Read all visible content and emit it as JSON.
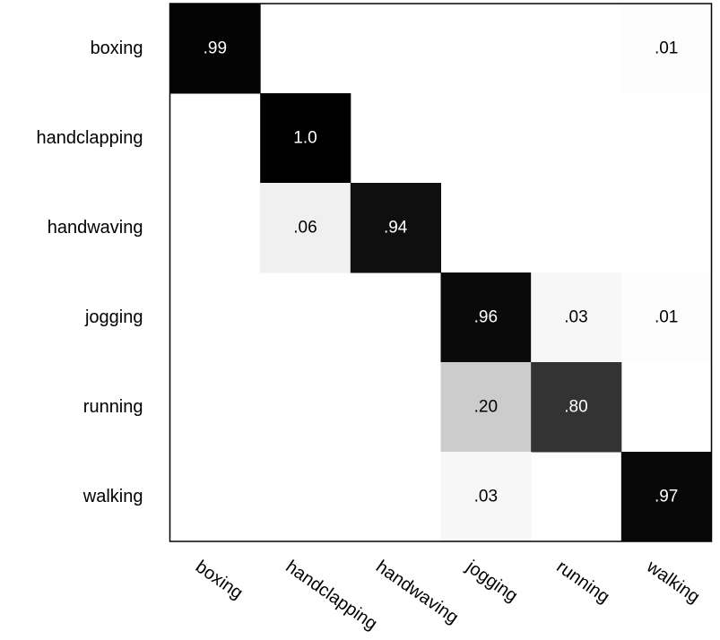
{
  "chart_data": {
    "type": "heatmap",
    "title": "",
    "xlabel": "",
    "ylabel": "",
    "rows": [
      "boxing",
      "handclapping",
      "handwaving",
      "jogging",
      "running",
      "walking"
    ],
    "columns": [
      "boxing",
      "handclapping",
      "handwaving",
      "jogging",
      "running",
      "walking"
    ],
    "values": [
      [
        0.99,
        0,
        0,
        0,
        0,
        0.01
      ],
      [
        0,
        1.0,
        0,
        0,
        0,
        0
      ],
      [
        0,
        0.06,
        0.94,
        0,
        0,
        0
      ],
      [
        0,
        0,
        0,
        0.96,
        0.03,
        0.01
      ],
      [
        0,
        0,
        0,
        0.2,
        0.8,
        0
      ],
      [
        0,
        0,
        0,
        0.03,
        0,
        0.97
      ]
    ],
    "cell_labels": [
      [
        ".99",
        "",
        "",
        "",
        "",
        ".01"
      ],
      [
        "",
        "1.0",
        "",
        "",
        "",
        ""
      ],
      [
        "",
        ".06",
        ".94",
        "",
        "",
        ""
      ],
      [
        "",
        "",
        "",
        ".96",
        ".03",
        ".01"
      ],
      [
        "",
        "",
        "",
        ".20",
        ".80",
        ""
      ],
      [
        "",
        "",
        "",
        ".03",
        "",
        ".97"
      ]
    ],
    "colormap": "gray_r",
    "value_range": [
      0,
      1
    ],
    "grid": false,
    "legend": "none"
  }
}
